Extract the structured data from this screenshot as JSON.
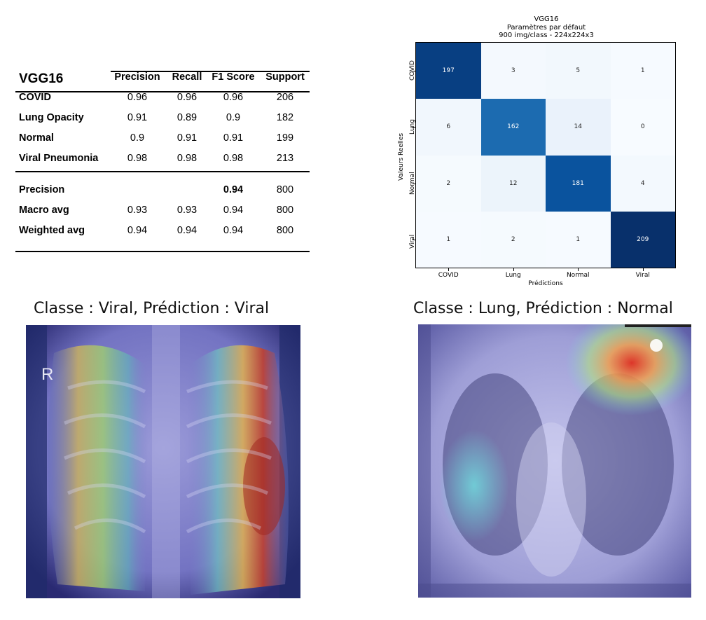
{
  "metrics_table": {
    "title": "VGG16",
    "headers": [
      "Precision",
      "Recall",
      "F1 Score",
      "Support"
    ],
    "rows": [
      {
        "label": "COVID",
        "precision": "0.96",
        "recall": "0.96",
        "f1": "0.96",
        "support": "206"
      },
      {
        "label": "Lung Opacity",
        "precision": "0.91",
        "recall": "0.89",
        "f1": "0.9",
        "support": "182"
      },
      {
        "label": "Normal",
        "precision": "0.9",
        "recall": "0.91",
        "f1": "0.91",
        "support": "199"
      },
      {
        "label": "Viral Pneumonia",
        "precision": "0.98",
        "recall": "0.98",
        "f1": "0.98",
        "support": "213"
      }
    ],
    "summary": [
      {
        "label": "Precision",
        "precision": "",
        "recall": "",
        "f1": "0.94",
        "support": "800"
      },
      {
        "label": "Macro avg",
        "precision": "0.93",
        "recall": "0.93",
        "f1": "0.94",
        "support": "800"
      },
      {
        "label": "Weighted avg",
        "precision": "0.94",
        "recall": "0.94",
        "f1": "0.94",
        "support": "800"
      }
    ]
  },
  "chart_data": {
    "type": "heatmap",
    "title": "VGG16",
    "subtitle_lines": [
      "Paramètres par défaut",
      "900 img/class - 224x224x3"
    ],
    "xlabel": "Prédictions",
    "ylabel": "Valeurs Reelles",
    "x_categories": [
      "COVID",
      "Lung",
      "Normal",
      "Viral"
    ],
    "y_categories": [
      "COVID",
      "Lung",
      "Normal",
      "Viral"
    ],
    "values": [
      [
        197,
        3,
        5,
        1
      ],
      [
        6,
        162,
        14,
        0
      ],
      [
        2,
        12,
        181,
        4
      ],
      [
        1,
        2,
        1,
        209
      ]
    ],
    "colormap": "Blues",
    "vmax": 209
  },
  "images": [
    {
      "caption": "Classe : Viral, Prédiction : Viral",
      "marker": "R"
    },
    {
      "caption": "Classe : Lung, Prédiction : Normal"
    }
  ]
}
